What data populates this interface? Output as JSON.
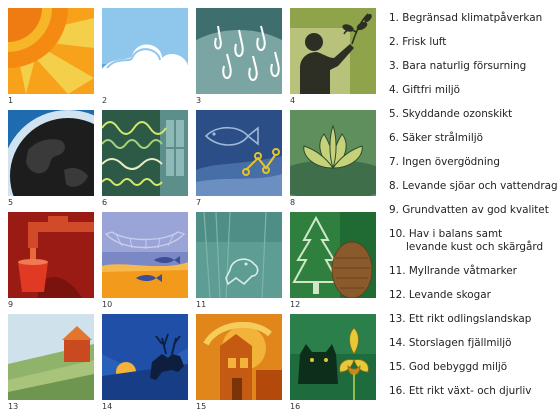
{
  "tiles": [
    {
      "num": "1"
    },
    {
      "num": "2"
    },
    {
      "num": "3"
    },
    {
      "num": "4"
    },
    {
      "num": "5"
    },
    {
      "num": "6"
    },
    {
      "num": "7"
    },
    {
      "num": "8"
    },
    {
      "num": "9"
    },
    {
      "num": "10"
    },
    {
      "num": "11"
    },
    {
      "num": "12"
    },
    {
      "num": "13"
    },
    {
      "num": "14"
    },
    {
      "num": "15"
    },
    {
      "num": "16"
    }
  ],
  "goals": [
    {
      "line1": "1. Begränsad klimatpåverkan"
    },
    {
      "line1": "2. Frisk luft"
    },
    {
      "line1": "3. Bara naturlig försurning"
    },
    {
      "line1": "4. Giftfri miljö"
    },
    {
      "line1": "5. Skyddande ozonskikt"
    },
    {
      "line1": "6. Säker strålmiljö"
    },
    {
      "line1": "7. Ingen övergödning"
    },
    {
      "line1": "8. Levande sjöar och vattendrag"
    },
    {
      "line1": "9. Grundvatten av god kvalitet"
    },
    {
      "line1": "10. Hav i balans samt",
      "line2": "levande kust och skärgård"
    },
    {
      "line1": "11. Myllrande våtmarker"
    },
    {
      "line1": "12. Levande skogar"
    },
    {
      "line1": "13. Ett rikt odlingslandskap"
    },
    {
      "line1": "14. Storslagen fjällmiljö"
    },
    {
      "line1": "15. God bebyggd miljö"
    },
    {
      "line1": "16. Ett rikt växt- och djurliv"
    }
  ]
}
